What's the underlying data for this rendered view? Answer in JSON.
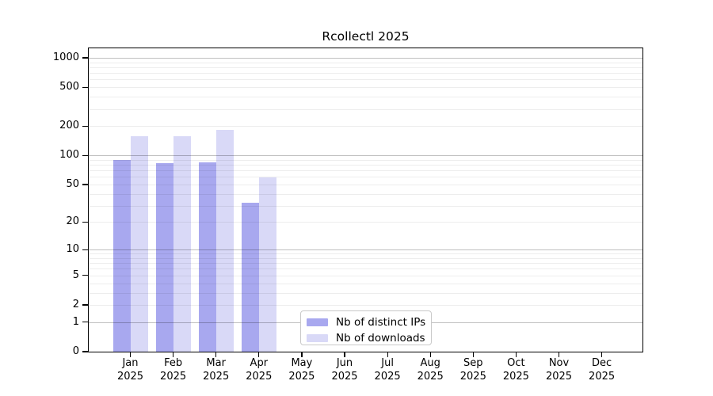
{
  "chart_data": {
    "type": "bar",
    "title": "Rcollectl 2025",
    "categories": [
      "Jan",
      "Feb",
      "Mar",
      "Apr",
      "May",
      "Jun",
      "Jul",
      "Aug",
      "Sep",
      "Oct",
      "Nov",
      "Dec"
    ],
    "x_year_label": "2025",
    "series": [
      {
        "name": "Nb of distinct IPs",
        "color": "#a8a8ef",
        "values": [
          89,
          83,
          84,
          32,
          null,
          null,
          null,
          null,
          null,
          null,
          null,
          null
        ]
      },
      {
        "name": "Nb of downloads",
        "color": "#d9d9f7",
        "values": [
          157,
          158,
          184,
          59,
          null,
          null,
          null,
          null,
          null,
          null,
          null,
          null
        ]
      }
    ],
    "y_axis": {
      "scale": "log1p",
      "ticks": [
        0,
        1,
        2,
        5,
        10,
        20,
        50,
        100,
        200,
        500,
        1000
      ],
      "range": [
        0,
        1250
      ]
    },
    "x_axis": {
      "tick_count": 12
    },
    "gridlines": {
      "major": [
        1,
        10,
        100,
        1000
      ],
      "minor": [
        2,
        3,
        4,
        5,
        6,
        7,
        8,
        9,
        20,
        30,
        40,
        50,
        60,
        70,
        80,
        90,
        200,
        300,
        400,
        500,
        600,
        700,
        800,
        900
      ]
    },
    "legend": {
      "position": "bottom-center"
    },
    "colors": {
      "background": "#ffffff",
      "axis": "#000000",
      "grid_major": "rgba(0,0,0,0.25)",
      "grid_minor": "rgba(0,0,0,0.07)"
    }
  }
}
